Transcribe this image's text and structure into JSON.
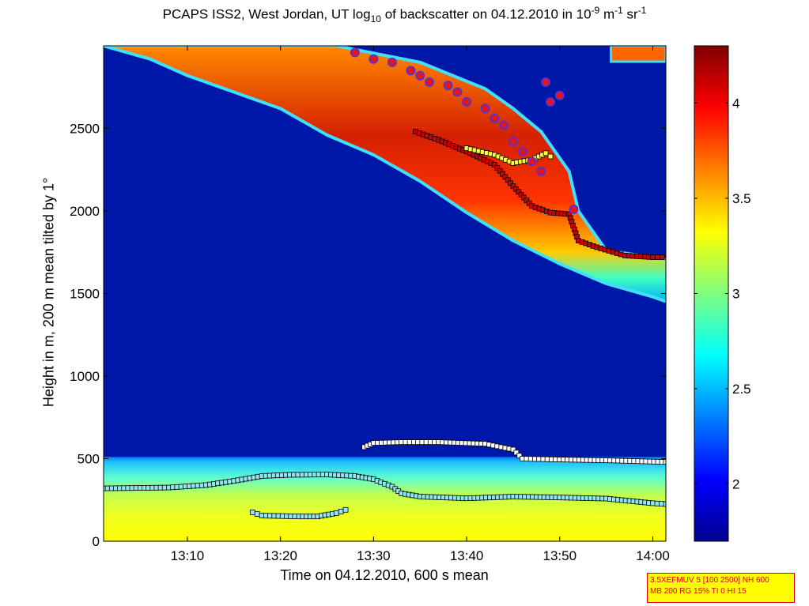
{
  "chart_data": {
    "type": "heatmap",
    "title": {
      "prefix": "PCAPS ISS2, West Jordan, UT log",
      "sub": "10",
      "mid": " of backscatter on 04.12.2010 in 10",
      "sup1": "-9",
      "mid2": " m",
      "sup2": "-1",
      "mid3": " sr",
      "sup3": "-1"
    },
    "xlabel": "Time on 04.12.2010, 600 s mean",
    "ylabel": "Height in m, 200 m mean tilted by 1°",
    "x_ticks": [
      "13:10",
      "13:20",
      "13:30",
      "13:40",
      "13:50",
      "14:00"
    ],
    "x_tick_minutes": [
      10,
      20,
      30,
      40,
      50,
      60
    ],
    "xlim_minutes": [
      1,
      61.4
    ],
    "y_ticks": [
      0,
      500,
      1000,
      1500,
      2000,
      2500
    ],
    "ylim": [
      0,
      3000
    ],
    "colorbar": {
      "range": [
        1.7,
        4.3
      ],
      "ticks": [
        2,
        2.5,
        3,
        3.5,
        4
      ],
      "tick_labels": [
        "2",
        "2.5",
        "3",
        "3.5",
        "4"
      ],
      "colormap": "jet"
    },
    "layers": {
      "surface_layer_top_m": 510,
      "surface_layer_value": 2.6,
      "surface_fill_value": 3.3,
      "plume_lower_edge_m": [
        [
          1,
          3000
        ],
        [
          6,
          2920
        ],
        [
          10,
          2820
        ],
        [
          15,
          2720
        ],
        [
          20,
          2620
        ],
        [
          25,
          2460
        ],
        [
          30,
          2340
        ],
        [
          35,
          2180
        ],
        [
          40,
          1990
        ],
        [
          45,
          1820
        ],
        [
          50,
          1680
        ],
        [
          55,
          1560
        ],
        [
          60,
          1480
        ],
        [
          62,
          1440
        ]
      ],
      "plume_upper_edge_m": [
        [
          26,
          3000
        ],
        [
          35,
          2900
        ],
        [
          42,
          2740
        ],
        [
          45,
          2620
        ],
        [
          48,
          2480
        ],
        [
          51,
          2240
        ],
        [
          52,
          2000
        ],
        [
          55,
          1760
        ],
        [
          60,
          1720
        ],
        [
          62,
          1700
        ]
      ],
      "plume_peak_value": 4.2
    },
    "series": [
      {
        "marker": "square",
        "color": "#8fe8ef",
        "points": [
          [
            1,
            320
          ],
          [
            8,
            325
          ],
          [
            12,
            340
          ],
          [
            15,
            365
          ],
          [
            18,
            395
          ],
          [
            21,
            402
          ],
          [
            25,
            404
          ],
          [
            28,
            395
          ],
          [
            30,
            375
          ],
          [
            32,
            330
          ],
          [
            33,
            290
          ],
          [
            35,
            270
          ],
          [
            40,
            260
          ],
          [
            45,
            270
          ],
          [
            50,
            265
          ],
          [
            55,
            258
          ],
          [
            60,
            230
          ],
          [
            61.4,
            225
          ]
        ]
      },
      {
        "marker": "square",
        "color": "#8fe8ef",
        "points": [
          [
            17,
            175
          ],
          [
            18,
            155
          ],
          [
            22,
            150
          ],
          [
            24,
            150
          ],
          [
            26,
            170
          ],
          [
            27,
            190
          ]
        ]
      },
      {
        "marker": "square",
        "color": "#ffffff",
        "points": [
          [
            29,
            570
          ],
          [
            30,
            595
          ],
          [
            33,
            600
          ],
          [
            37,
            600
          ],
          [
            42,
            590
          ],
          [
            45,
            555
          ],
          [
            46,
            500
          ],
          [
            50,
            495
          ],
          [
            55,
            490
          ],
          [
            61.4,
            480
          ]
        ]
      },
      {
        "marker": "square",
        "color": "#cc0000",
        "points": [
          [
            34.5,
            2480
          ],
          [
            37,
            2430
          ],
          [
            40,
            2360
          ],
          [
            43,
            2280
          ],
          [
            45,
            2150
          ],
          [
            47,
            2030
          ],
          [
            49,
            1990
          ],
          [
            51,
            1980
          ],
          [
            52,
            1820
          ],
          [
            54,
            1780
          ],
          [
            57,
            1730
          ],
          [
            60,
            1720
          ],
          [
            61,
            1720
          ]
        ]
      },
      {
        "marker": "square",
        "color": "#ffff40",
        "points": [
          [
            40,
            2380
          ],
          [
            43,
            2340
          ],
          [
            45,
            2290
          ],
          [
            47,
            2310
          ],
          [
            48.5,
            2350
          ],
          [
            49,
            2330
          ]
        ]
      },
      {
        "marker": "circle",
        "color": "#ee1111",
        "edge": "#5533cc",
        "points": [
          [
            28,
            2960
          ],
          [
            30,
            2920
          ],
          [
            32,
            2900
          ],
          [
            34,
            2850
          ],
          [
            35,
            2820
          ],
          [
            36,
            2780
          ],
          [
            38,
            2760
          ],
          [
            39,
            2720
          ],
          [
            40,
            2660
          ],
          [
            42,
            2620
          ],
          [
            43,
            2560
          ],
          [
            44,
            2520
          ],
          [
            45,
            2420
          ],
          [
            46,
            2360
          ],
          [
            47,
            2300
          ],
          [
            48,
            2240
          ],
          [
            48.5,
            2780
          ],
          [
            49,
            2660
          ],
          [
            50,
            2700
          ],
          [
            51.5,
            2010
          ]
        ]
      }
    ]
  },
  "infobox": {
    "line1": "3.5XEFMUV 5 [100 2500] NH 600",
    "line2": "MB 200 RG 15% TI 0 HI 15"
  }
}
